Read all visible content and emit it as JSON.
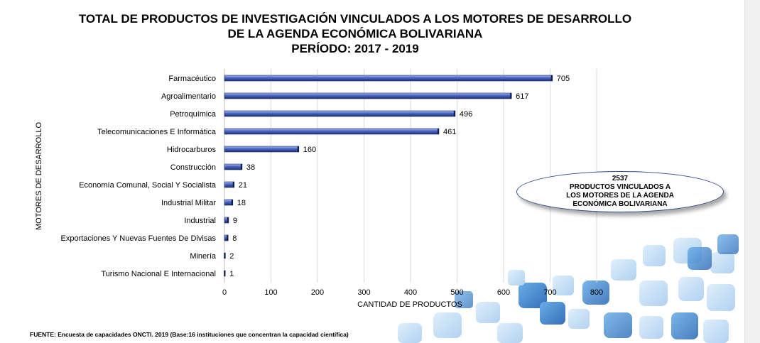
{
  "title_lines": [
    "TOTAL DE PRODUCTOS DE INVESTIGACIÓN VINCULADOS A LOS MOTORES DE DESARROLLO",
    "DE LA AGENDA ECONÓMICA BOLIVARIANA",
    "PERÍODO: 2017 -  2019"
  ],
  "summary": {
    "total": "2537",
    "line1": "PRODUCTOS VINCULADOS A",
    "line2": "LOS MOTORES DE LA AGENDA",
    "line3": "ECONÓMICA BOLIVARIANA"
  },
  "footer": "FUENTE: Encuesta de capacidades ONCTI. 2019 (Base:16 instituciones que concentran la capacidad científica)",
  "chart_data": {
    "type": "bar",
    "orientation": "horizontal",
    "categories": [
      "Farmacéutico",
      "Agroalimentario",
      "Petroquímica",
      "Telecomunicaciones E Informática",
      "Hidrocarburos",
      "Construcción",
      "Economía Comunal, Social Y Socialista",
      "Industrial Militar",
      "Industrial",
      "Exportaciones Y Nuevas Fuentes De Divisas",
      "Minería",
      "Turismo Nacional E Internacional"
    ],
    "values": [
      705,
      617,
      496,
      461,
      160,
      38,
      21,
      18,
      9,
      8,
      2,
      1
    ],
    "xlabel": "CANTIDAD DE PRODUCTOS",
    "ylabel": "MOTORES DE DESARROLLO",
    "xlim": [
      0,
      800
    ],
    "xticks": [
      0,
      100,
      200,
      300,
      400,
      500,
      600,
      700,
      800
    ],
    "grid": true,
    "data_labels": true,
    "colors": {
      "bar": "#4a66c4",
      "bar_light": "#a6b7ee",
      "bar_dark": "#1e2f6e",
      "grid": "#d9d9d9"
    }
  }
}
